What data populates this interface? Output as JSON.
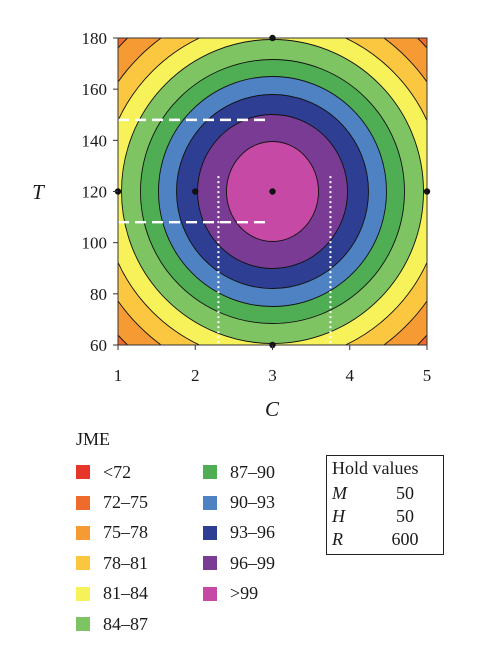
{
  "chart_data": {
    "type": "contour",
    "x_label": "C",
    "y_label": "T",
    "x_ticks": [
      "1",
      "2",
      "3",
      "4",
      "5"
    ],
    "y_ticks": [
      "60",
      "80",
      "100",
      "120",
      "140",
      "160",
      "180"
    ],
    "xlim": [
      1,
      5
    ],
    "ylim": [
      60,
      180
    ],
    "center": {
      "C": 3,
      "T": 120
    },
    "design_points": [
      {
        "C": 3,
        "T": 180
      },
      {
        "C": 1,
        "T": 120
      },
      {
        "C": 2,
        "T": 120
      },
      {
        "C": 3,
        "T": 120
      },
      {
        "C": 5,
        "T": 120
      },
      {
        "C": 3,
        "T": 60
      }
    ],
    "contour_levels": [
      72,
      75,
      78,
      81,
      84,
      87,
      90,
      93,
      96,
      99
    ],
    "dashed_guides": {
      "T_bounds_for_93": [
        108,
        148
      ],
      "C_bounds_for_96": [
        2.3,
        3.75
      ]
    },
    "legend_title": "JME",
    "legend": [
      {
        "label": "<72",
        "color": "#e8352a"
      },
      {
        "label": "72–75",
        "color": "#ef6b2c"
      },
      {
        "label": "75–78",
        "color": "#f69a33"
      },
      {
        "label": "78–81",
        "color": "#fbc640"
      },
      {
        "label": "81–84",
        "color": "#f8f25a"
      },
      {
        "label": "84–87",
        "color": "#7fc462"
      },
      {
        "label": "87–90",
        "color": "#4fae53"
      },
      {
        "label": "90–93",
        "color": "#4f82c2"
      },
      {
        "label": "93–96",
        "color": "#2e3e92"
      },
      {
        "label": "96–99",
        "color": "#7a3b94"
      },
      {
        "label": ">99",
        "color": "#c64aa5"
      }
    ],
    "hold_values": {
      "title": "Hold values",
      "rows": [
        {
          "name": "M",
          "value": "50"
        },
        {
          "name": "H",
          "value": "50"
        },
        {
          "name": "R",
          "value": "600"
        }
      ]
    }
  }
}
